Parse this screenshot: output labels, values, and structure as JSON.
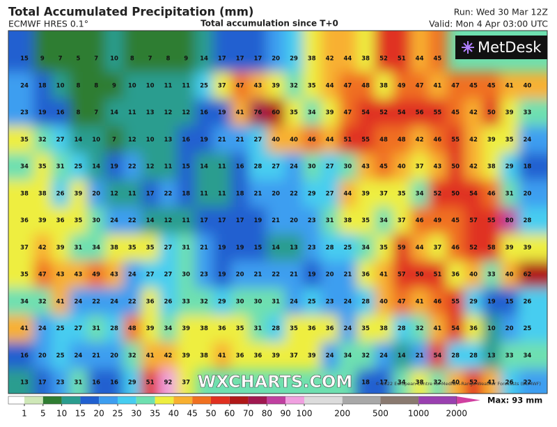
{
  "header": {
    "title": "Total Accumulated Precipitation (mm)",
    "model": "ECMWF HRES 0.1°",
    "subtitle": "Total accumulation since T+0",
    "run": "Run: Wed 30 Mar 12Z",
    "valid": "Valid: Mon 4 Apr 03:00 UTC"
  },
  "logo": "MetDesk",
  "watermark": "WXCHARTS.COM",
  "copyright": "© 2022 European Centre for Medium-Range Weather Forecasts (ECMWF)",
  "map": {
    "rows": [
      [
        15,
        9,
        7,
        5,
        7,
        10,
        8,
        7,
        8,
        9,
        14,
        17,
        17,
        17,
        20,
        29,
        38,
        42,
        44,
        38,
        52,
        51,
        44,
        45,
        null,
        null,
        null,
        null,
        null
      ],
      [
        24,
        18,
        10,
        8,
        8,
        9,
        10,
        10,
        11,
        11,
        25,
        37,
        47,
        43,
        39,
        32,
        35,
        44,
        47,
        48,
        38,
        49,
        47,
        41,
        47,
        45,
        45,
        41,
        40
      ],
      [
        23,
        19,
        16,
        8,
        7,
        14,
        11,
        13,
        12,
        12,
        16,
        19,
        41,
        76,
        60,
        35,
        34,
        39,
        47,
        54,
        52,
        54,
        56,
        55,
        45,
        42,
        50,
        39,
        33
      ],
      [
        35,
        32,
        27,
        14,
        10,
        7,
        12,
        10,
        13,
        16,
        19,
        21,
        21,
        27,
        40,
        40,
        46,
        44,
        51,
        55,
        48,
        48,
        42,
        46,
        55,
        42,
        39,
        35,
        24
      ],
      [
        34,
        35,
        31,
        25,
        14,
        19,
        22,
        12,
        11,
        15,
        14,
        11,
        16,
        28,
        27,
        24,
        30,
        27,
        30,
        43,
        45,
        40,
        37,
        43,
        50,
        42,
        38,
        29,
        18
      ],
      [
        38,
        38,
        26,
        39,
        20,
        12,
        11,
        17,
        22,
        18,
        11,
        11,
        18,
        21,
        20,
        22,
        29,
        27,
        44,
        39,
        37,
        35,
        34,
        52,
        50,
        54,
        46,
        31,
        20
      ],
      [
        36,
        39,
        36,
        35,
        30,
        24,
        22,
        14,
        12,
        11,
        17,
        17,
        17,
        19,
        21,
        20,
        23,
        31,
        38,
        35,
        34,
        37,
        46,
        49,
        45,
        57,
        55,
        80,
        28
      ],
      [
        37,
        42,
        39,
        31,
        34,
        38,
        35,
        35,
        27,
        31,
        21,
        19,
        19,
        15,
        14,
        13,
        23,
        28,
        25,
        34,
        35,
        59,
        44,
        37,
        46,
        52,
        58,
        39,
        39
      ],
      [
        35,
        47,
        43,
        43,
        49,
        43,
        24,
        27,
        27,
        30,
        23,
        19,
        20,
        21,
        22,
        21,
        19,
        20,
        21,
        36,
        41,
        57,
        50,
        51,
        36,
        40,
        33,
        40,
        62
      ],
      [
        34,
        32,
        41,
        24,
        22,
        24,
        22,
        36,
        26,
        33,
        32,
        29,
        30,
        30,
        31,
        24,
        25,
        23,
        24,
        28,
        40,
        47,
        41,
        46,
        55,
        29,
        19,
        15,
        26
      ],
      [
        41,
        24,
        25,
        27,
        31,
        28,
        48,
        39,
        34,
        39,
        38,
        36,
        35,
        31,
        28,
        35,
        36,
        36,
        24,
        35,
        38,
        28,
        32,
        41,
        54,
        36,
        10,
        20,
        25
      ],
      [
        16,
        20,
        25,
        24,
        21,
        20,
        32,
        41,
        42,
        39,
        38,
        41,
        36,
        36,
        39,
        37,
        39,
        24,
        34,
        32,
        24,
        14,
        21,
        54,
        28,
        28,
        13,
        33,
        34
      ],
      [
        13,
        17,
        23,
        31,
        16,
        16,
        29,
        51,
        92,
        37,
        null,
        null,
        null,
        null,
        null,
        null,
        null,
        null,
        null,
        18,
        17,
        34,
        38,
        32,
        40,
        52,
        41,
        26,
        22
      ]
    ]
  },
  "colorbar": {
    "ticks": [
      1,
      5,
      10,
      15,
      20,
      25,
      30,
      35,
      40,
      45,
      50,
      60,
      70,
      80,
      90,
      100,
      200,
      500,
      1000,
      2000
    ],
    "colors": [
      "#ffffff",
      "#cfe8b8",
      "#2f7d32",
      "#2a9d8f",
      "#2060d0",
      "#3d9ef0",
      "#46cdf0",
      "#6ee0b0",
      "#eeee40",
      "#f8b030",
      "#f07020",
      "#e03020",
      "#b01818",
      "#a01850",
      "#c040a0",
      "#f0a0e0",
      "#dcdcdc",
      "#a8a8a8",
      "#8a7a70",
      "#9a40b0",
      "#d040a0"
    ],
    "max_label": "Max: 93 mm"
  }
}
